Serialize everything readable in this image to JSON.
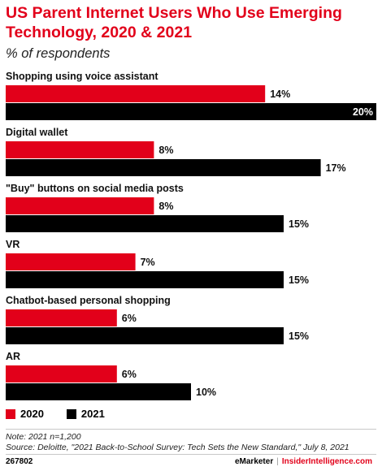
{
  "title": "US Parent Internet Users Who Use Emerging Technology, 2020 & 2021",
  "subtitle": "% of respondents",
  "chart_data": {
    "type": "bar",
    "orientation": "horizontal",
    "categories": [
      "Shopping using voice assistant",
      "Digital wallet",
      "\"Buy\" buttons on social media posts",
      "VR",
      "Chatbot-based personal shopping",
      "AR"
    ],
    "series": [
      {
        "name": "2020",
        "color": "#e2001a",
        "values": [
          14,
          8,
          8,
          7,
          6,
          6
        ]
      },
      {
        "name": "2021",
        "color": "#000000",
        "values": [
          20,
          17,
          15,
          15,
          15,
          10
        ]
      }
    ],
    "value_suffix": "%",
    "xlim": [
      0,
      20
    ],
    "grid": false,
    "legend_position": "bottom-left"
  },
  "legend": {
    "item1": "2020",
    "item2": "2021"
  },
  "note": "Note: 2021 n=1,200",
  "source": "Source: Deloitte, \"2021 Back-to-School Survey: Tech Sets the New Standard,\" July 8, 2021",
  "footer": {
    "chart_id": "267802",
    "brand": "eMarketer",
    "separator": "|",
    "brand2": "InsiderIntelligence.com"
  }
}
